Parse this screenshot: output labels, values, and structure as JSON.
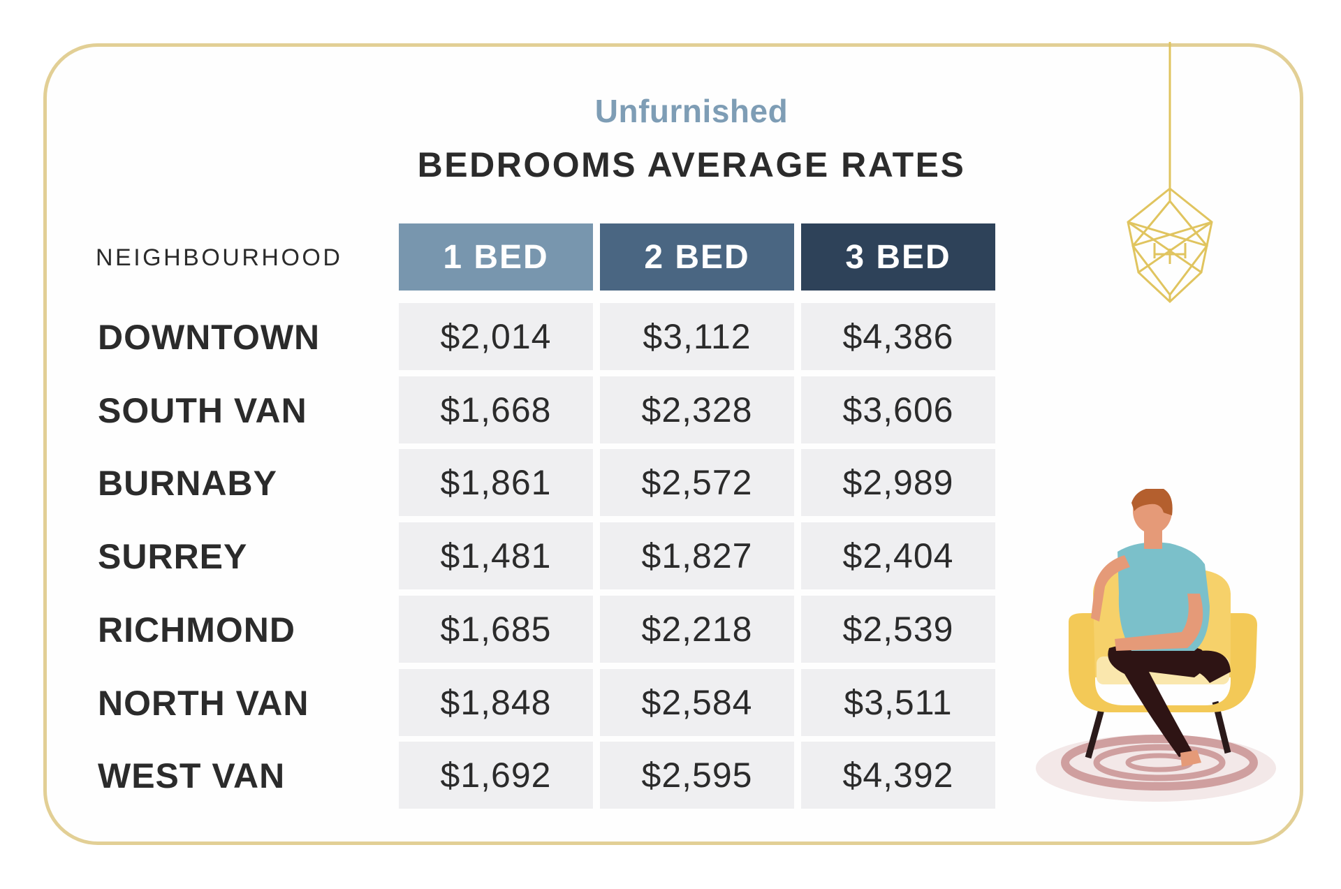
{
  "chart_data": {
    "type": "table",
    "subtitle": "Unfurnished",
    "title": "BEDROOMS AVERAGE RATES",
    "row_header": "NEIGHBOURHOOD",
    "columns": [
      "1 BED",
      "2 BED",
      "3 BED"
    ],
    "rows": [
      {
        "label": "DOWNTOWN",
        "values": [
          "$2,014",
          "$3,112",
          "$4,386"
        ]
      },
      {
        "label": "SOUTH VAN",
        "values": [
          "$1,668",
          "$2,328",
          "$3,606"
        ]
      },
      {
        "label": "BURNABY",
        "values": [
          "$1,861",
          "$2,572",
          "$2,989"
        ]
      },
      {
        "label": "SURREY",
        "values": [
          "$1,481",
          "$1,827",
          "$2,404"
        ]
      },
      {
        "label": "RICHMOND",
        "values": [
          "$1,685",
          "$2,218",
          "$2,539"
        ]
      },
      {
        "label": "NORTH VAN",
        "values": [
          "$1,848",
          "$2,584",
          "$3,511"
        ]
      },
      {
        "label": "WEST VAN",
        "values": [
          "$1,692",
          "$2,595",
          "$4,392"
        ]
      }
    ]
  },
  "colors": {
    "header_1_bed": "#7896ae",
    "header_2_bed": "#4a6682",
    "header_3_bed": "#2e4259",
    "cell_background": "#efeff1",
    "border_gold": "#e2cf95",
    "subtitle_color": "#7e9db5",
    "text_dark": "#2b2b2b"
  },
  "icons": {
    "chandelier": "geometric-chandelier-icon",
    "person": "person-on-armchair-illustration"
  }
}
